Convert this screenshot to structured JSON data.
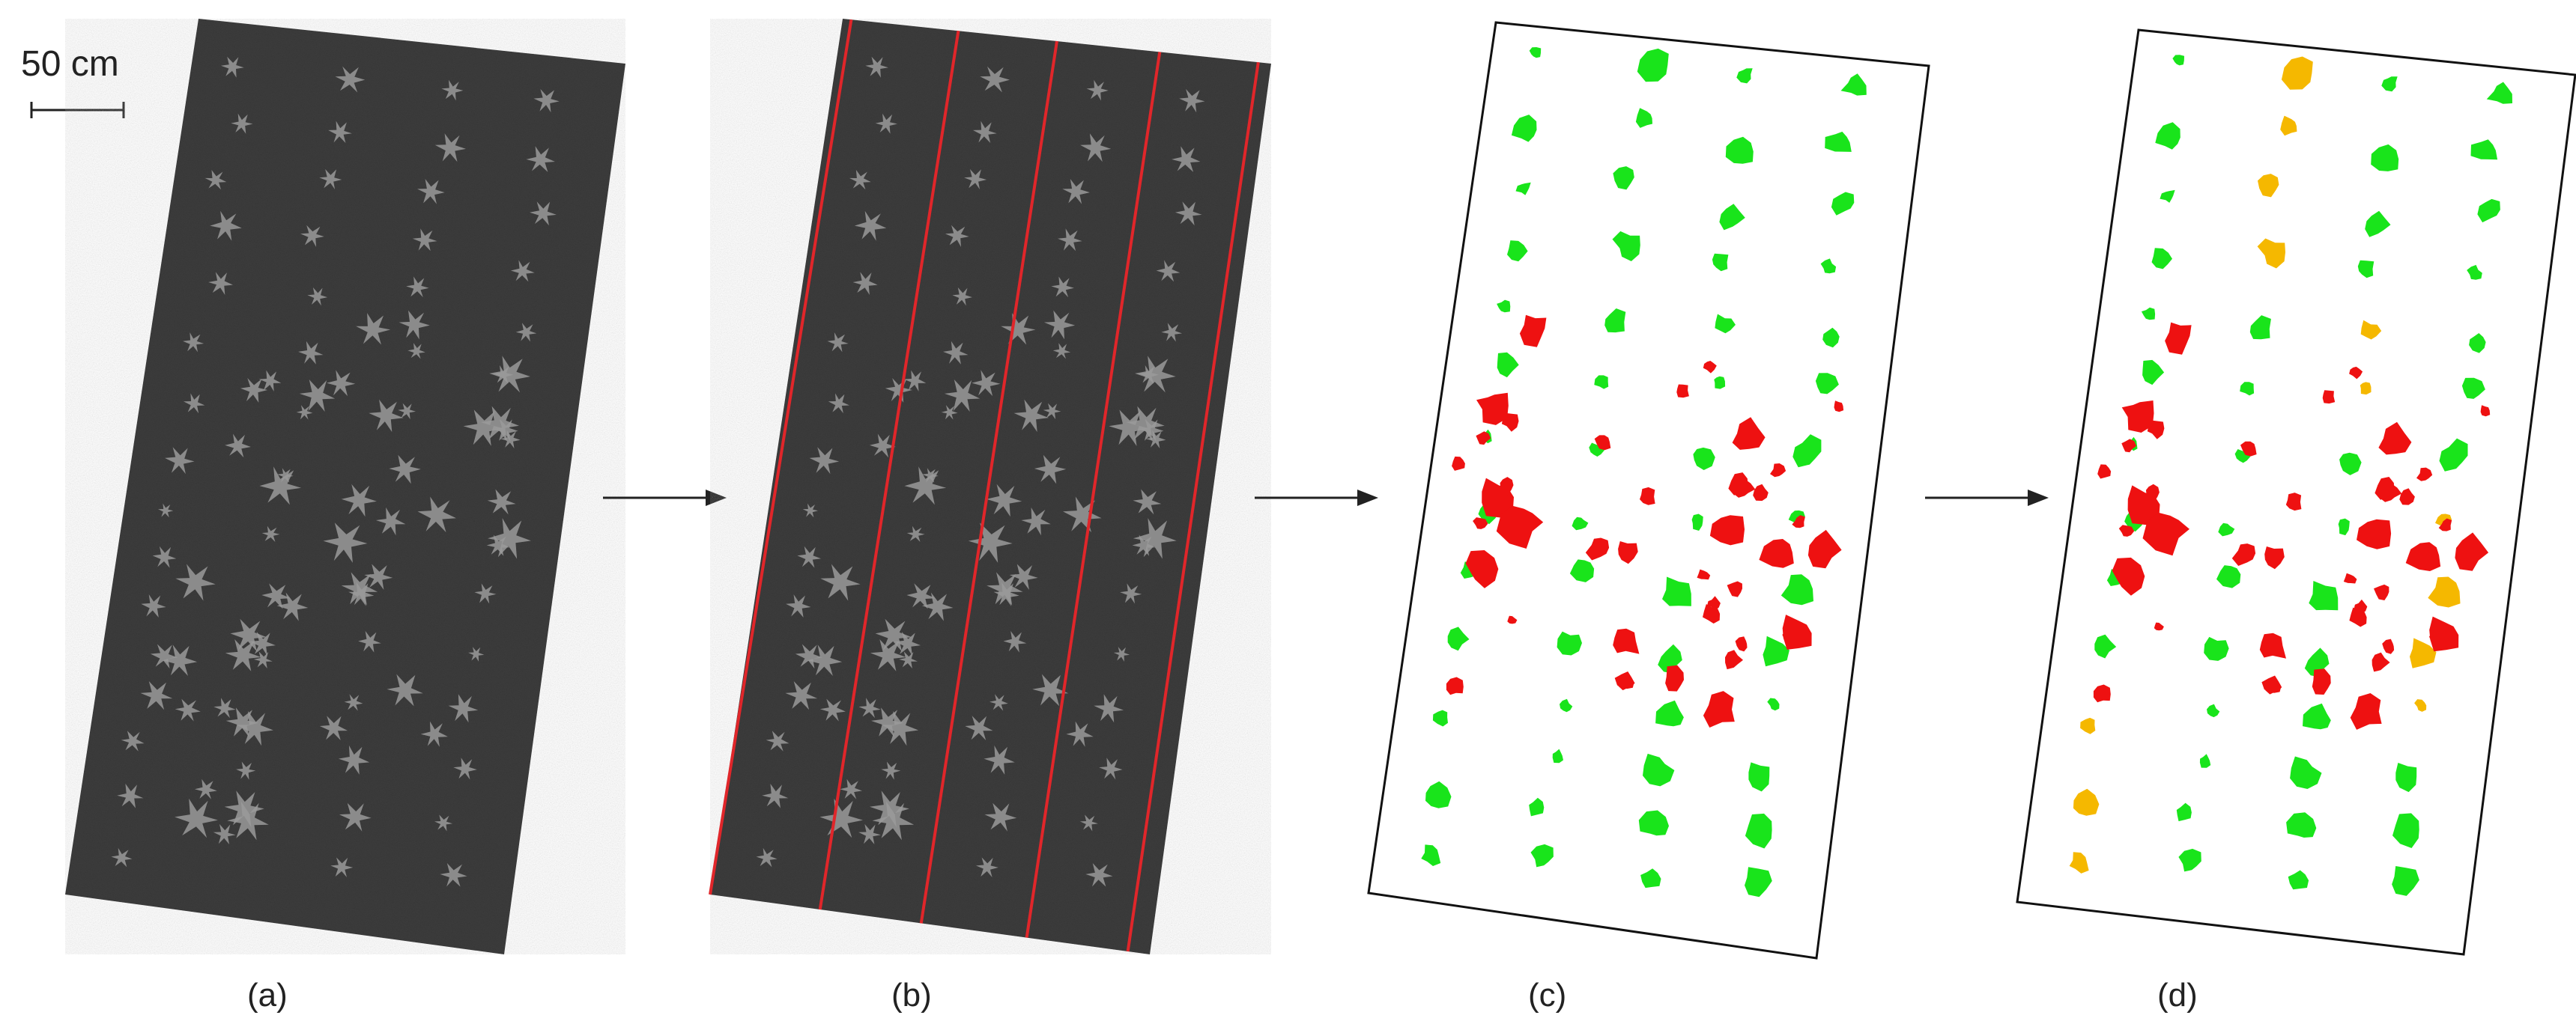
{
  "figure": {
    "scale_bar_label": "50 cm",
    "panels": [
      {
        "id": "a",
        "caption": "(a)",
        "kind": "grayscale-aerial"
      },
      {
        "id": "b",
        "caption": "(b)",
        "kind": "grayscale-aerial-with-row-lines"
      },
      {
        "id": "c",
        "caption": "(c)",
        "kind": "binary-classification"
      },
      {
        "id": "d",
        "caption": "(d)",
        "kind": "refined-classification"
      }
    ],
    "arrows": 3,
    "colors": {
      "field_dark": "#3a3a3a",
      "plant_gray": "#9a9a9a",
      "row_line": "#e0262a",
      "crop": "#19e41b",
      "weed": "#ee1111",
      "third_class": "#f5b800",
      "frame": "#111111"
    }
  }
}
